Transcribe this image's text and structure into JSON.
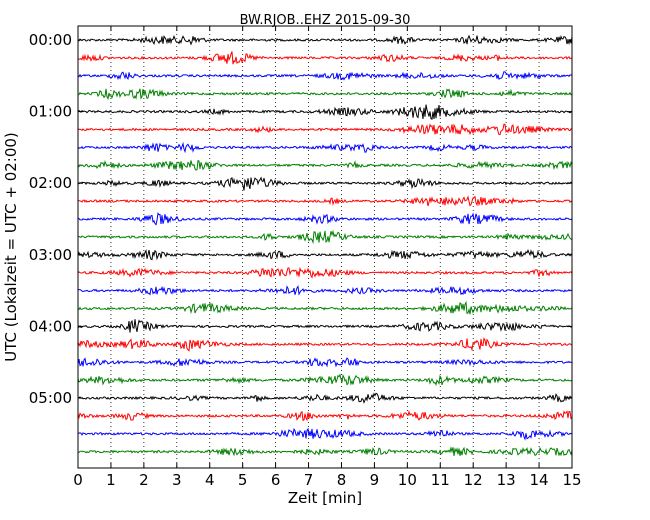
{
  "chart_data": {
    "type": "line",
    "title": "BW.RJOB..EHZ 2015-09-30",
    "xlabel": "Zeit  [min]",
    "ylabel": "UTC (Lokalzeit = UTC + 02:00)",
    "xlim": [
      0,
      15
    ],
    "x_ticks": [
      "0",
      "1",
      "2",
      "3",
      "4",
      "5",
      "6",
      "7",
      "8",
      "9",
      "10",
      "11",
      "12",
      "13",
      "14",
      "15"
    ],
    "y_tick_labels": [
      "00:00",
      "01:00",
      "02:00",
      "03:00",
      "04:00",
      "05:00"
    ],
    "grid": "vertical dotted lines at each minute",
    "traces_per_hour": 4,
    "trace_minutes": 15,
    "trace_colors": [
      "#000000",
      "#ff0000",
      "#0000ff",
      "#007f00"
    ],
    "traces": [
      {
        "start": "00:00",
        "color": "#000000"
      },
      {
        "start": "00:15",
        "color": "#ff0000"
      },
      {
        "start": "00:30",
        "color": "#0000ff"
      },
      {
        "start": "00:45",
        "color": "#007f00"
      },
      {
        "start": "01:00",
        "color": "#000000"
      },
      {
        "start": "01:15",
        "color": "#ff0000"
      },
      {
        "start": "01:30",
        "color": "#0000ff"
      },
      {
        "start": "01:45",
        "color": "#007f00"
      },
      {
        "start": "02:00",
        "color": "#000000"
      },
      {
        "start": "02:15",
        "color": "#ff0000"
      },
      {
        "start": "02:30",
        "color": "#0000ff"
      },
      {
        "start": "02:45",
        "color": "#007f00"
      },
      {
        "start": "03:00",
        "color": "#000000"
      },
      {
        "start": "03:15",
        "color": "#ff0000"
      },
      {
        "start": "03:30",
        "color": "#0000ff"
      },
      {
        "start": "03:45",
        "color": "#007f00"
      },
      {
        "start": "04:00",
        "color": "#000000"
      },
      {
        "start": "04:15",
        "color": "#ff0000"
      },
      {
        "start": "04:30",
        "color": "#0000ff"
      },
      {
        "start": "04:45",
        "color": "#007f00"
      },
      {
        "start": "05:00",
        "color": "#000000"
      },
      {
        "start": "05:15",
        "color": "#ff0000"
      },
      {
        "start": "05:30",
        "color": "#0000ff"
      },
      {
        "start": "05:45",
        "color": "#007f00"
      }
    ]
  }
}
